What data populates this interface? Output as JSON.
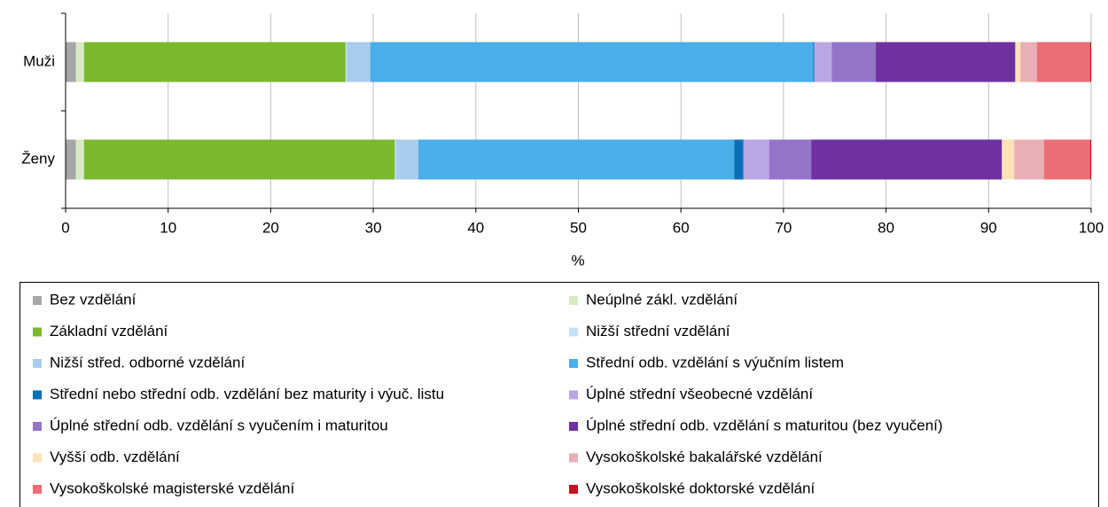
{
  "chart_data": {
    "type": "bar",
    "orientation": "horizontal",
    "stacked": true,
    "xlabel": "%",
    "categories": [
      "Muži",
      "Ženy"
    ],
    "xlim": [
      0,
      100
    ],
    "xticks": [
      0,
      10,
      20,
      30,
      40,
      50,
      60,
      70,
      80,
      90,
      100
    ],
    "grid": true,
    "legend": "bottom",
    "series": [
      {
        "name": "Bez vzdělání",
        "color": "#a6a6a6",
        "values": [
          1.0,
          1.0
        ]
      },
      {
        "name": "Neúplné zákl. vzdělání",
        "color": "#d6ebc3",
        "values": [
          0.8,
          0.8
        ]
      },
      {
        "name": "Základní vzdělání",
        "color": "#7ab82e",
        "values": [
          25.5,
          30.3
        ]
      },
      {
        "name": "Nižší střední vzdělání",
        "color": "#c5e3f7",
        "values": [
          0.1,
          0.1
        ]
      },
      {
        "name": "Nižší střed. odborné vzdělání",
        "color": "#a9cdee",
        "values": [
          2.3,
          2.2
        ]
      },
      {
        "name": "Střední odb. vzdělání s výučním listem",
        "color": "#4aaee8",
        "values": [
          43.2,
          30.8
        ]
      },
      {
        "name": "Střední nebo střední odb. vzdělání bez maturity i výuč. listu",
        "color": "#0b6fb8",
        "values": [
          0.1,
          0.9
        ]
      },
      {
        "name": "Úplné střední všeobecné vzdělání",
        "color": "#b9a6e2",
        "values": [
          1.7,
          2.5
        ]
      },
      {
        "name": "Úplné střední odb. vzdělání s vyučením i maturitou",
        "color": "#9474c8",
        "values": [
          4.3,
          4.1
        ]
      },
      {
        "name": "Úplné střední odb. vzdělání s maturitou (bez vyučení)",
        "color": "#7030a0",
        "values": [
          13.6,
          18.6
        ]
      },
      {
        "name": "Vyšší odb. vzdělání",
        "color": "#fde3b5",
        "values": [
          0.5,
          1.2
        ]
      },
      {
        "name": "Vysokoškolské bakalářské vzdělání",
        "color": "#e8b0b4",
        "values": [
          1.6,
          2.9
        ]
      },
      {
        "name": "Vysokoškolské magisterské vzdělání",
        "color": "#eb6e75",
        "values": [
          5.2,
          4.5
        ]
      },
      {
        "name": "Vysokoškolské doktorské vzdělání",
        "color": "#c0141e",
        "values": [
          0.1,
          0.1
        ]
      }
    ]
  }
}
